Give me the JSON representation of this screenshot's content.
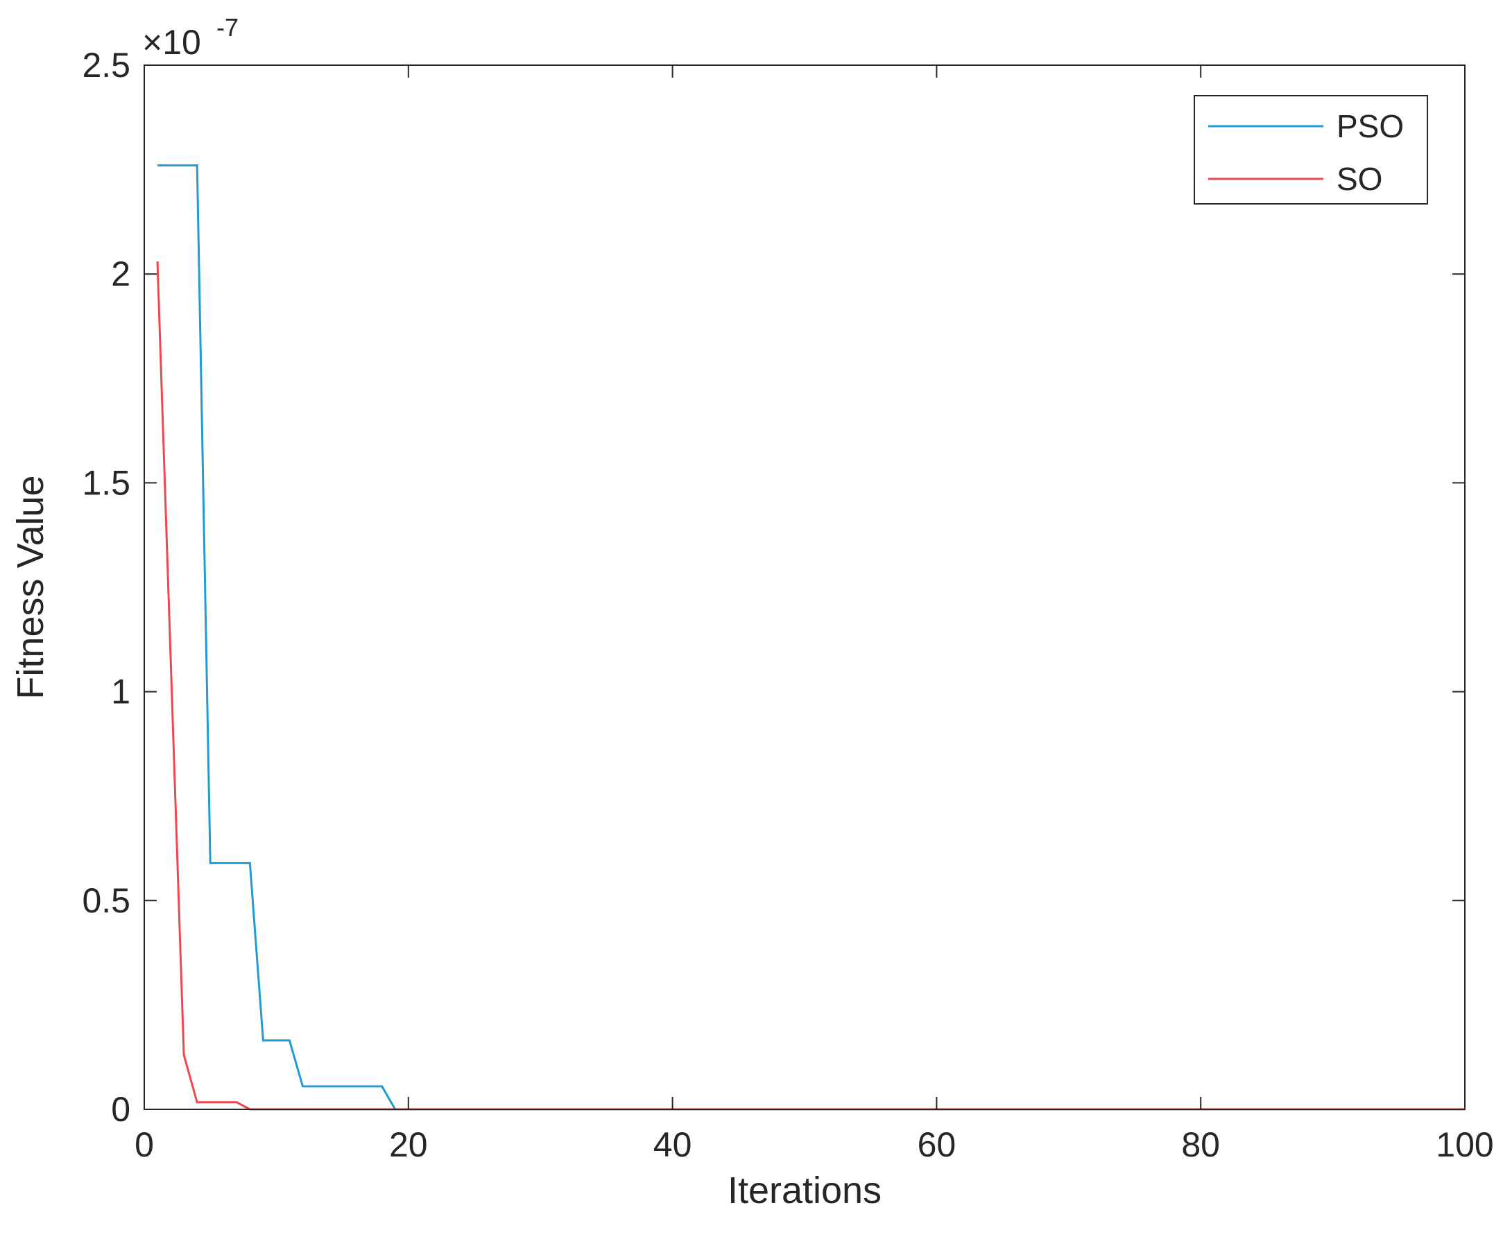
{
  "chart_data": {
    "type": "line",
    "title": "",
    "xlabel": "Iterations",
    "ylabel": "Fitness Value",
    "xlim": [
      0,
      100
    ],
    "ylim": [
      0,
      2.5e-07
    ],
    "x_ticks": [
      0,
      20,
      40,
      60,
      80,
      100
    ],
    "y_ticks": [
      0,
      0.5,
      1,
      1.5,
      2,
      2.5
    ],
    "y_tick_labels": [
      "0",
      "0.5",
      "1",
      "1.5",
      "2",
      "2.5"
    ],
    "y_exponent": {
      "base": "×10",
      "power": "-7"
    },
    "grid": false,
    "legend_position": "top-right",
    "series": [
      {
        "name": "PSO",
        "color": "#1f9bd5",
        "x": [
          1,
          4,
          5,
          8,
          9,
          11,
          12,
          18,
          19,
          100
        ],
        "y": [
          2.26e-07,
          2.26e-07,
          5.9e-08,
          5.9e-08,
          1.65e-08,
          1.65e-08,
          5.5e-09,
          5.5e-09,
          0.0,
          0.0
        ]
      },
      {
        "name": "SO",
        "color": "#f0474f",
        "x": [
          1,
          3,
          4,
          7,
          8,
          100
        ],
        "y": [
          2.03e-07,
          1.3e-08,
          1.7e-09,
          1.7e-09,
          0.0,
          0.0
        ]
      }
    ]
  }
}
